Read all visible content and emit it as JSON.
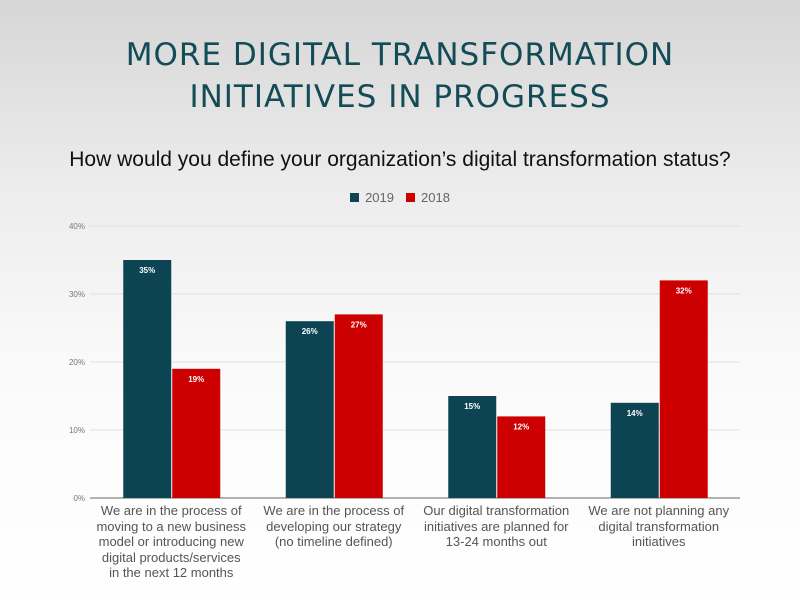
{
  "title_lines": [
    "MORE DIGITAL TRANSFORMATION",
    "INITIATIVES IN PROGRESS"
  ],
  "colors": {
    "2019": "#0d4453",
    "2018": "#cc0000",
    "title": "#134b57"
  },
  "chart_data": {
    "type": "bar",
    "title": "How would you define your organization’s digital transformation status?",
    "categories": [
      "We are in the process of\nmoving to a new business\nmodel or introducing new\ndigital products/services\nin the next 12 months",
      "We are in the process of\ndeveloping our strategy\n(no timeline defined)",
      "Our digital transformation\ninitiatives are planned for\n13-24 months out",
      "We are not planning any\ndigital transformation\ninitiatives"
    ],
    "series": [
      {
        "name": "2019",
        "values": [
          35,
          26,
          15,
          14
        ],
        "labels": [
          "35%",
          "26%",
          "15%",
          "14%"
        ]
      },
      {
        "name": "2018",
        "values": [
          19,
          27,
          12,
          32
        ],
        "labels": [
          "19%",
          "27%",
          "12%",
          "32%"
        ]
      }
    ],
    "ylim": [
      0,
      40
    ],
    "yticks": [
      "0%",
      "10%",
      "20%",
      "30%",
      "40%"
    ],
    "grid": true,
    "legend": "top-center"
  }
}
